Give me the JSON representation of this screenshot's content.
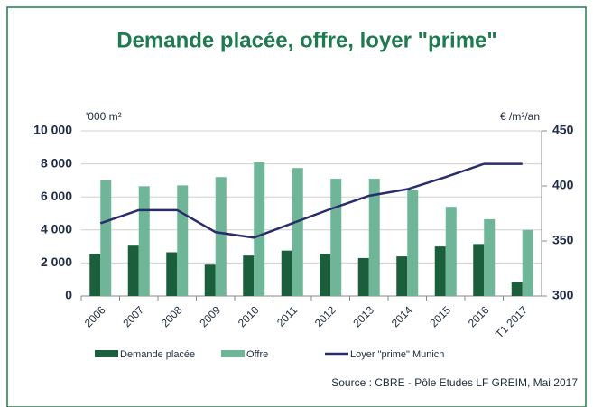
{
  "chart_data": {
    "type": "bar-line",
    "title": "Demande placée, offre, loyer \"prime\"",
    "y_label": "'000 m²",
    "y2_label": "€ /m²/an",
    "source": "Source : CBRE - Pôle Etudes LF GREIM, Mai 2017",
    "categories": [
      "2006",
      "2007",
      "2008",
      "2009",
      "2010",
      "2011",
      "2012",
      "2013",
      "2014",
      "2015",
      "2016",
      "T1 2017"
    ],
    "series": [
      {
        "name": "Demande placée",
        "color": "#1b5e3b",
        "type": "bar",
        "values": [
          2550,
          3050,
          2650,
          1900,
          2450,
          2750,
          2550,
          2300,
          2400,
          3000,
          3150,
          850
        ]
      },
      {
        "name": "Offre",
        "color": "#6fb597",
        "type": "bar",
        "values": [
          7000,
          6650,
          6700,
          7200,
          8100,
          7750,
          7100,
          7100,
          6450,
          5400,
          4650,
          4000
        ]
      },
      {
        "name": "Loyer \"prime\" Munich",
        "color": "#2a2d6b",
        "type": "line",
        "axis": "y2",
        "values": [
          366,
          378,
          378,
          358,
          353,
          366,
          379,
          391,
          397,
          408,
          420,
          420
        ]
      }
    ],
    "ylim": [
      0,
      10000
    ],
    "yticks": [
      {
        "value": 0,
        "label": "0"
      },
      {
        "value": 2000,
        "label": "2 000"
      },
      {
        "value": 4000,
        "label": "4 000"
      },
      {
        "value": 6000,
        "label": "6 000"
      },
      {
        "value": 8000,
        "label": "8 000"
      },
      {
        "value": 10000,
        "label": "10 000"
      }
    ],
    "y2lim": [
      300,
      450
    ],
    "y2ticks": [
      300,
      350,
      400,
      450
    ],
    "grid": true
  }
}
